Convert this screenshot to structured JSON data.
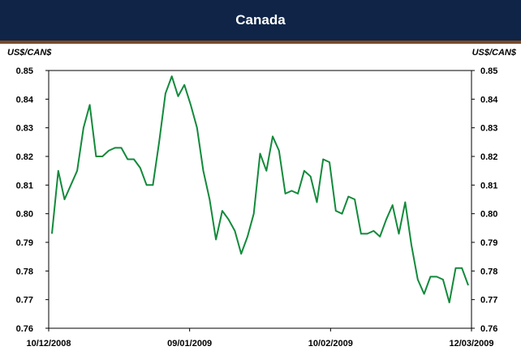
{
  "header": {
    "title": "Canada"
  },
  "chart_data": {
    "type": "line",
    "title": "Canada",
    "ylabel_left": "US$/CAN$",
    "ylabel_right": "US$/CAN$",
    "ylim": [
      0.76,
      0.85
    ],
    "yticks": [
      "0.85",
      "0.84",
      "0.83",
      "0.82",
      "0.81",
      "0.80",
      "0.79",
      "0.78",
      "0.77",
      "0.76"
    ],
    "xticks": [
      "10/12/2008",
      "09/01/2009",
      "10/02/2009",
      "12/03/2009"
    ],
    "grid": false,
    "series": [
      {
        "color": "#128a3b",
        "values": [
          0.793,
          0.815,
          0.805,
          0.81,
          0.815,
          0.83,
          0.838,
          0.82,
          0.82,
          0.822,
          0.823,
          0.823,
          0.819,
          0.819,
          0.816,
          0.81,
          0.81,
          0.825,
          0.842,
          0.848,
          0.841,
          0.845,
          0.838,
          0.83,
          0.815,
          0.805,
          0.791,
          0.801,
          0.798,
          0.794,
          0.786,
          0.792,
          0.8,
          0.821,
          0.815,
          0.827,
          0.822,
          0.807,
          0.808,
          0.807,
          0.815,
          0.813,
          0.804,
          0.819,
          0.818,
          0.801,
          0.8,
          0.806,
          0.805,
          0.793,
          0.793,
          0.794,
          0.792,
          0.798,
          0.803,
          0.793,
          0.804,
          0.789,
          0.777,
          0.772,
          0.778,
          0.778,
          0.777,
          0.769,
          0.781,
          0.781,
          0.775
        ]
      }
    ]
  }
}
